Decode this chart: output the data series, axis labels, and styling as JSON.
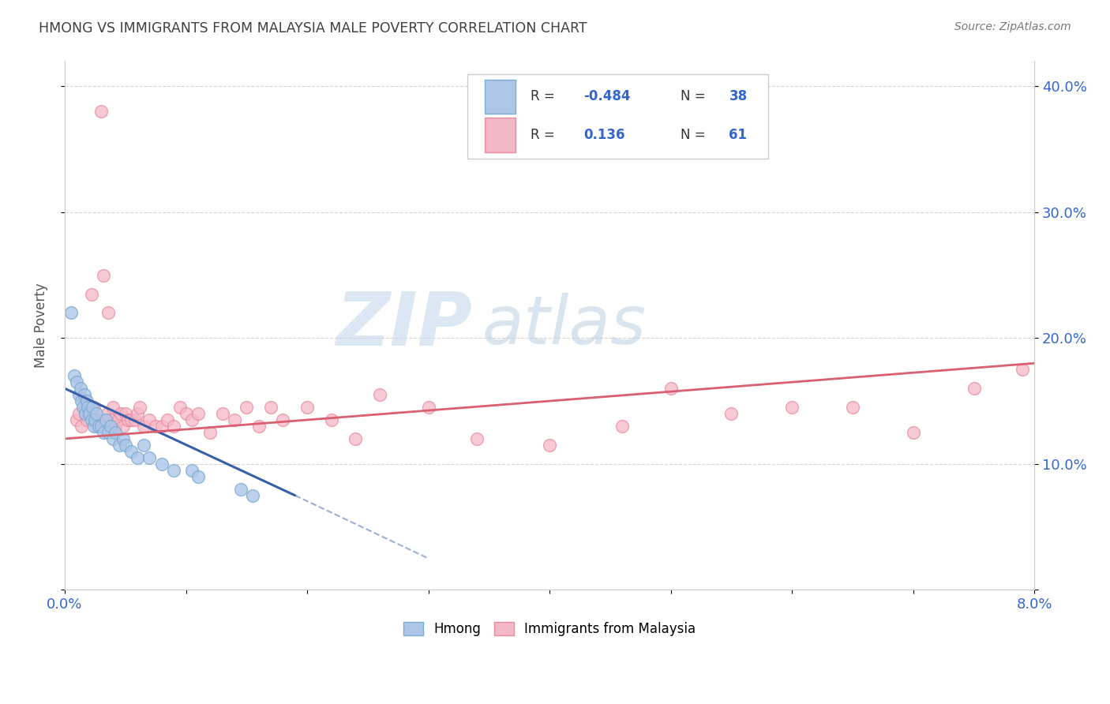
{
  "title": "HMONG VS IMMIGRANTS FROM MALAYSIA MALE POVERTY CORRELATION CHART",
  "source": "Source: ZipAtlas.com",
  "ylabel": "Male Poverty",
  "xlim": [
    0.0,
    8.0
  ],
  "ylim": [
    0.0,
    42.0
  ],
  "ytick_values": [
    0,
    10,
    20,
    30,
    40
  ],
  "ytick_labels_right": [
    "",
    "10.0%",
    "20.0%",
    "30.0%",
    "40.0%"
  ],
  "xtick_labels": [
    "0.0%",
    "",
    "",
    "",
    "",
    "",
    "",
    "",
    "8.0%"
  ],
  "legend_r1": "R = -0.484",
  "legend_n1": "N = 38",
  "legend_r2": "R =  0.136",
  "legend_n2": "N = 61",
  "color_hmong_fill": "#adc6e8",
  "color_hmong_edge": "#7aaad0",
  "color_malaysia_fill": "#f5b8c8",
  "color_malaysia_edge": "#e88aa0",
  "color_line_hmong": "#3a5faa",
  "color_line_malaysia": "#d96070",
  "watermark_zip": "ZIP",
  "watermark_atlas": "atlas",
  "background_color": "#ffffff",
  "grid_color": "#cccccc",
  "hmong_x": [
    0.05,
    0.08,
    0.1,
    0.12,
    0.13,
    0.14,
    0.15,
    0.16,
    0.17,
    0.18,
    0.19,
    0.2,
    0.22,
    0.23,
    0.24,
    0.25,
    0.26,
    0.28,
    0.3,
    0.32,
    0.34,
    0.36,
    0.38,
    0.4,
    0.42,
    0.45,
    0.48,
    0.5,
    0.55,
    0.6,
    0.65,
    0.7,
    0.8,
    0.9,
    1.05,
    1.1,
    1.45,
    1.55
  ],
  "hmong_y": [
    22.0,
    17.0,
    16.5,
    15.5,
    16.0,
    15.0,
    14.5,
    15.5,
    14.0,
    15.0,
    14.5,
    14.0,
    13.5,
    14.5,
    13.0,
    13.5,
    14.0,
    13.0,
    13.0,
    12.5,
    13.5,
    12.5,
    13.0,
    12.0,
    12.5,
    11.5,
    12.0,
    11.5,
    11.0,
    10.5,
    11.5,
    10.5,
    10.0,
    9.5,
    9.5,
    9.0,
    8.0,
    7.5
  ],
  "malaysia_x": [
    0.1,
    0.12,
    0.14,
    0.16,
    0.18,
    0.2,
    0.22,
    0.24,
    0.25,
    0.27,
    0.29,
    0.3,
    0.32,
    0.34,
    0.35,
    0.36,
    0.38,
    0.4,
    0.42,
    0.44,
    0.46,
    0.48,
    0.5,
    0.52,
    0.55,
    0.58,
    0.6,
    0.62,
    0.65,
    0.7,
    0.75,
    0.8,
    0.85,
    0.9,
    0.95,
    1.0,
    1.05,
    1.1,
    1.2,
    1.3,
    1.4,
    1.5,
    1.6,
    1.7,
    1.8,
    2.0,
    2.2,
    2.4,
    2.6,
    3.0,
    3.4,
    4.0,
    4.6,
    5.0,
    5.5,
    6.0,
    6.5,
    7.0,
    7.5,
    7.9,
    0.3
  ],
  "malaysia_y": [
    13.5,
    14.0,
    13.0,
    14.5,
    13.5,
    14.0,
    23.5,
    14.5,
    13.5,
    13.0,
    13.5,
    13.0,
    25.0,
    13.5,
    14.0,
    22.0,
    13.5,
    14.5,
    13.0,
    13.5,
    14.0,
    13.0,
    14.0,
    13.5,
    13.5,
    13.5,
    14.0,
    14.5,
    13.0,
    13.5,
    13.0,
    13.0,
    13.5,
    13.0,
    14.5,
    14.0,
    13.5,
    14.0,
    12.5,
    14.0,
    13.5,
    14.5,
    13.0,
    14.5,
    13.5,
    14.5,
    13.5,
    12.0,
    15.5,
    14.5,
    12.0,
    11.5,
    13.0,
    16.0,
    14.0,
    14.5,
    14.5,
    12.5,
    16.0,
    17.5,
    38.0
  ]
}
